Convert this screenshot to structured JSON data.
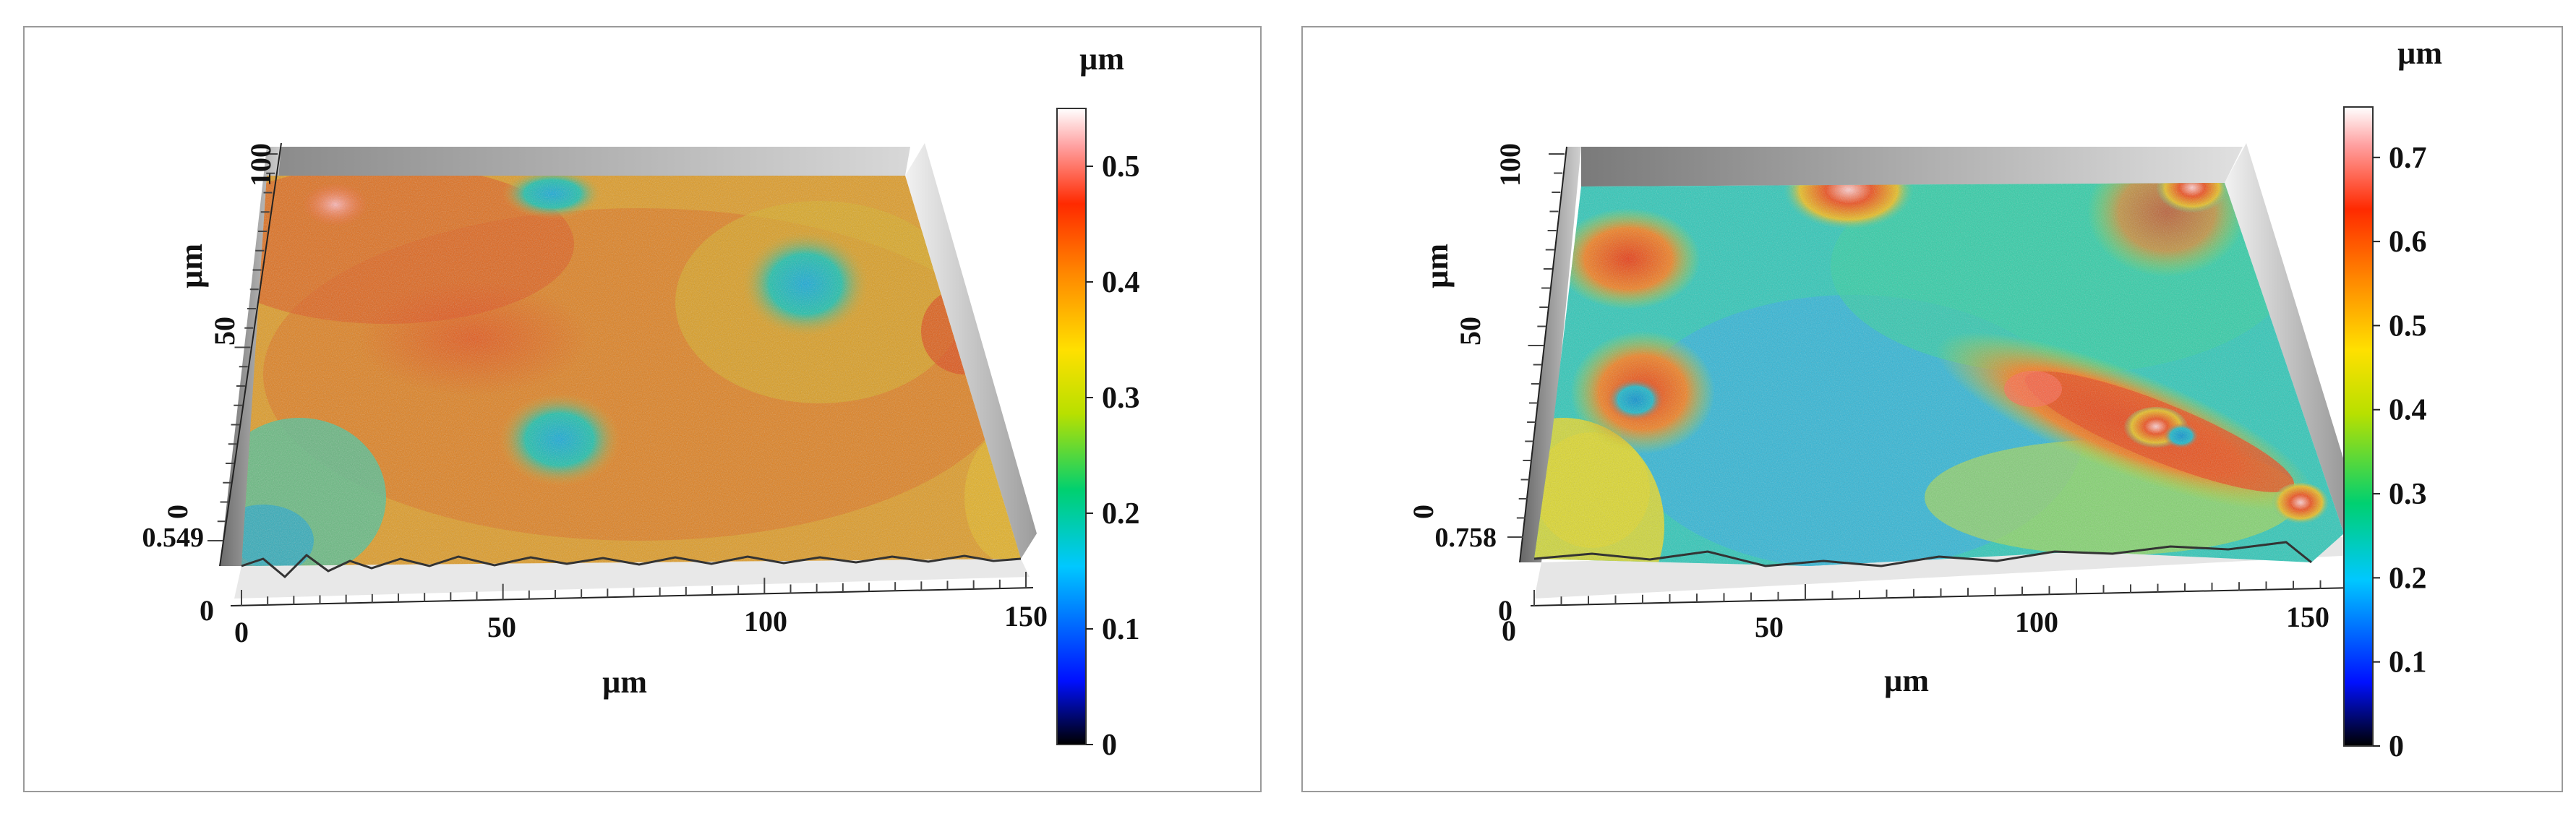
{
  "chart_data": [
    {
      "type": "surface",
      "title": "",
      "xlabel": "µm",
      "ylabel": "µm",
      "x_range": [
        0,
        150
      ],
      "y_range": [
        0,
        100
      ],
      "x_ticks": [
        "0",
        "50",
        "100",
        "150"
      ],
      "y_ticks": [
        "0",
        "50",
        "100"
      ],
      "z_min_label": "0",
      "z_max_label": "0.549",
      "colorbar": {
        "unit": "µm",
        "range": [
          0,
          0.55
        ],
        "ticks": [
          "0",
          "0.1",
          "0.2",
          "0.3",
          "0.4",
          "0.5"
        ]
      }
    },
    {
      "type": "surface",
      "title": "",
      "xlabel": "µm",
      "ylabel": "µm",
      "x_range": [
        0,
        150
      ],
      "y_range": [
        0,
        100
      ],
      "x_ticks": [
        "0",
        "50",
        "100",
        "150"
      ],
      "y_ticks": [
        "0",
        "50",
        "100"
      ],
      "z_min_label": "0",
      "z_max_label": "0.758",
      "colorbar": {
        "unit": "µm",
        "range": [
          0,
          0.76
        ],
        "ticks": [
          "0",
          "0.1",
          "0.2",
          "0.3",
          "0.4",
          "0.5",
          "0.6",
          "0.7"
        ]
      }
    }
  ],
  "colors": {
    "colormap": [
      "#000000",
      "#0018ff",
      "#00c8ff",
      "#00d070",
      "#b0e000",
      "#ffe800",
      "#ff9a00",
      "#ff2a00",
      "#ffd0d0",
      "#ffffff"
    ]
  }
}
